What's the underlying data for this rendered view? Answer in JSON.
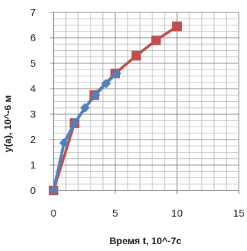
{
  "chart_data": {
    "type": "line",
    "title": "",
    "xlabel": "Время t, 10^-7c",
    "ylabel": "y(a), 10^-6 м",
    "xlim": [
      0,
      15
    ],
    "ylim": [
      0,
      7
    ],
    "x_ticks": [
      "0",
      "5",
      "10",
      "15"
    ],
    "y_ticks": [
      "0",
      "1",
      "2",
      "3",
      "4",
      "5",
      "6",
      "7"
    ],
    "x_minor_step": 1,
    "y_minor_step": 0.25,
    "grid": true,
    "legend": "none",
    "series": [
      {
        "color": "#c0504d",
        "marker": "square",
        "x": [
          0,
          1.7,
          3.3,
          5.0,
          6.7,
          8.3,
          10.0
        ],
        "y": [
          0,
          2.65,
          3.75,
          4.6,
          5.3,
          5.9,
          6.45
        ]
      },
      {
        "color": "#4f81bd",
        "marker": "diamond",
        "x": [
          0,
          0.85,
          1.7,
          2.55,
          3.4,
          4.25,
          5.1
        ],
        "y": [
          0,
          1.87,
          2.65,
          3.25,
          3.75,
          4.2,
          4.6
        ]
      }
    ]
  }
}
